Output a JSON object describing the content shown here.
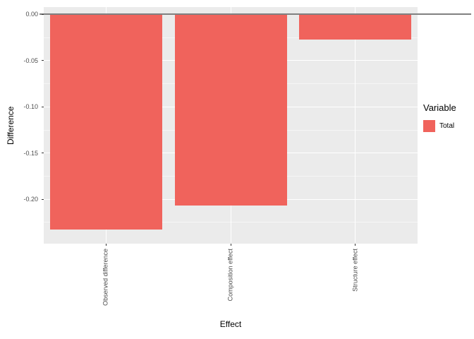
{
  "chart_data": {
    "type": "bar",
    "title": "",
    "xlabel": "Effect",
    "ylabel": "Difference",
    "categories": [
      "Observed difference",
      "Composition effect",
      "Structure effect"
    ],
    "series": [
      {
        "name": "Total",
        "values": [
          -0.233,
          -0.207,
          -0.027
        ]
      }
    ],
    "ylim": [
      0.008,
      -0.248
    ],
    "yticks": [
      {
        "value": 0.0,
        "label": "0.00"
      },
      {
        "value": -0.05,
        "label": "-0.05"
      },
      {
        "value": -0.1,
        "label": "-0.10"
      },
      {
        "value": -0.15,
        "label": "-0.15"
      },
      {
        "value": -0.2,
        "label": "-0.20"
      }
    ],
    "yticks_minor": [
      -0.025,
      -0.075,
      -0.125,
      -0.175,
      -0.225
    ],
    "grid": "on",
    "ref_line": {
      "value": 0.0
    },
    "legend": {
      "position": "right",
      "title": "Variable",
      "items": [
        {
          "label": "Total",
          "color": "#F0635C"
        }
      ]
    },
    "colors": {
      "bar": "#F0635C",
      "panel_bg": "#EBEBEB",
      "grid_major": "#FFFFFF",
      "ref_line": "#808080",
      "axis_text": "#4D4D4D",
      "axis_title": "#000000",
      "tick": "#333333"
    },
    "bar_width_fraction": 0.9
  }
}
